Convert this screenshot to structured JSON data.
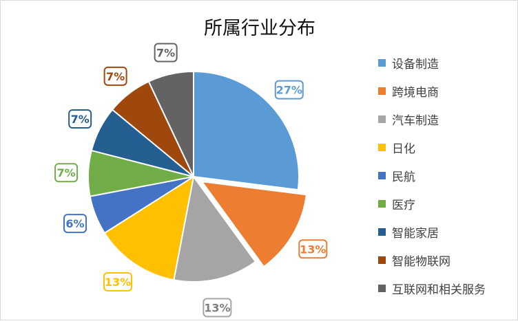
{
  "chart_data": {
    "type": "pie",
    "title": "所属行业分布",
    "legend_position": "right",
    "slices": [
      {
        "label": "设备制造",
        "value": 27,
        "display": "27%",
        "color": "#5b9bd5",
        "exploded": false
      },
      {
        "label": "跨境电商",
        "value": 13,
        "display": "13%",
        "color": "#ed7d31",
        "exploded": true
      },
      {
        "label": "汽车制造",
        "value": 13,
        "display": "13%",
        "color": "#a5a5a5",
        "exploded": false
      },
      {
        "label": "日化",
        "value": 13,
        "display": "13%",
        "color": "#ffc000",
        "exploded": false
      },
      {
        "label": "民航",
        "value": 6,
        "display": "6%",
        "color": "#4472c4",
        "exploded": false
      },
      {
        "label": "医疗",
        "value": 7,
        "display": "7%",
        "color": "#70ad47",
        "exploded": false
      },
      {
        "label": "智能家居",
        "value": 7,
        "display": "7%",
        "color": "#255e91",
        "exploded": false
      },
      {
        "label": "智能物联网",
        "value": 7,
        "display": "7%",
        "color": "#9e480e",
        "exploded": false
      },
      {
        "label": "互联网和相关服务",
        "value": 7,
        "display": "7%",
        "color": "#636363",
        "exploded": false
      }
    ]
  }
}
